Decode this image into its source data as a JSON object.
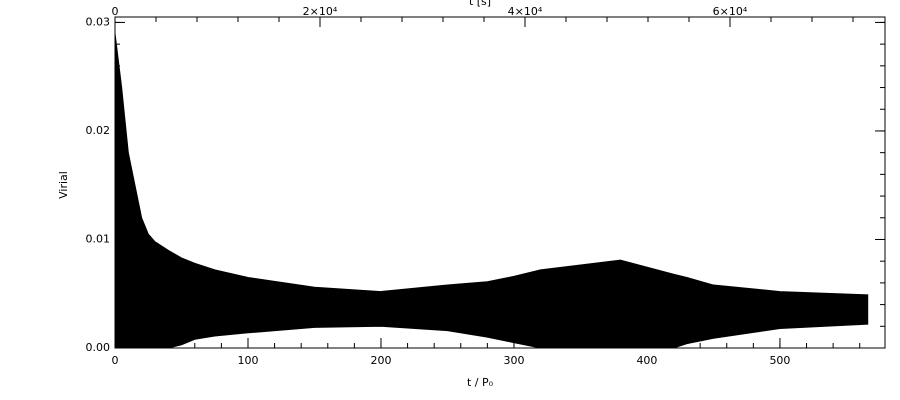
{
  "chart_data": {
    "type": "band",
    "xlabel": "t / P₀",
    "ylabel": "Virial",
    "x2label": "t [s]",
    "x": [
      0,
      5,
      10,
      15,
      20,
      25,
      30,
      40,
      50,
      60,
      75,
      100,
      150,
      200,
      250,
      280,
      300,
      320,
      380,
      420,
      430,
      450,
      500,
      566
    ],
    "upper": [
      0.029,
      0.024,
      0.018,
      0.015,
      0.012,
      0.0105,
      0.0098,
      0.009,
      0.0083,
      0.0078,
      0.0072,
      0.0065,
      0.0056,
      0.0052,
      0.0058,
      0.0061,
      0.0066,
      0.0072,
      0.0081,
      0.0068,
      0.0065,
      0.0058,
      0.0052,
      0.0049
    ],
    "lower": [
      0,
      0,
      0,
      0,
      0,
      0,
      0,
      0,
      0.0003,
      0.0008,
      0.0011,
      0.0014,
      0.0019,
      0.002,
      0.0016,
      0.001,
      0.0005,
      0,
      0,
      0,
      0.0004,
      0.0009,
      0.0018,
      0.0022
    ],
    "color": "#000000",
    "xlim": [
      0,
      579
    ],
    "xticks": [
      0,
      100,
      200,
      300,
      400,
      500
    ],
    "ylim": [
      0,
      0.0305
    ],
    "yticks": [
      {
        "value": 0,
        "label": "0.00"
      },
      {
        "value": 0.01,
        "label": "0.01"
      },
      {
        "value": 0.02,
        "label": "0.02"
      },
      {
        "value": 0.03,
        "label": "0.03"
      }
    ],
    "x2lim": [
      0,
      75122
    ],
    "x2ticks": [
      0,
      {
        "value": 20000,
        "label": "2×10⁴"
      },
      {
        "value": 40000,
        "label": "4×10⁴"
      },
      {
        "value": 60000,
        "label": "6×10⁴"
      }
    ],
    "minor_ticks": 5
  }
}
